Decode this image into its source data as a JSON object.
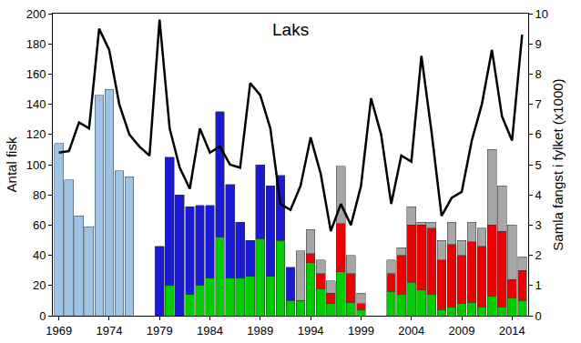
{
  "chart_data": {
    "type": "bar",
    "title": "Laks",
    "y_label": "Antal fisk",
    "y2_label": "Samla fangst i fylket (x1000)",
    "stacked": true,
    "grid": false,
    "x": [
      1969,
      1970,
      1971,
      1972,
      1973,
      1974,
      1975,
      1976,
      1977,
      1978,
      1979,
      1980,
      1981,
      1982,
      1983,
      1984,
      1985,
      1986,
      1987,
      1988,
      1989,
      1990,
      1991,
      1992,
      1993,
      1994,
      1995,
      1996,
      1997,
      1998,
      1999,
      2000,
      2001,
      2002,
      2003,
      2004,
      2005,
      2006,
      2007,
      2008,
      2009,
      2010,
      2011,
      2012,
      2013,
      2014,
      2015
    ],
    "xlim": [
      1968.4,
      2015.6
    ],
    "xticks": [
      1969,
      1974,
      1979,
      1984,
      1989,
      1994,
      1999,
      2004,
      2009,
      2014
    ],
    "ylim": [
      0,
      200
    ],
    "yticks": [
      0,
      20,
      40,
      60,
      80,
      100,
      120,
      140,
      160,
      180,
      200
    ],
    "y2lim": [
      0,
      10
    ],
    "y2ticks": [
      0,
      1,
      2,
      3,
      4,
      5,
      6,
      7,
      8,
      9,
      10
    ],
    "series": [
      {
        "type": "bar",
        "color": "#9dc3e6",
        "values": [
          114,
          90,
          66,
          59,
          146,
          150,
          96,
          92,
          null,
          null,
          null,
          null,
          null,
          null,
          null,
          null,
          null,
          null,
          null,
          null,
          null,
          null,
          null,
          null,
          null,
          null,
          null,
          null,
          null,
          null,
          null,
          null,
          null,
          null,
          null,
          null,
          null,
          null,
          null,
          null,
          null,
          null,
          null,
          null,
          null,
          null,
          null
        ]
      },
      {
        "type": "bar",
        "color": "#00cc00",
        "values": [
          null,
          null,
          null,
          null,
          null,
          null,
          null,
          null,
          null,
          null,
          null,
          20,
          null,
          14,
          20,
          25,
          52,
          25,
          25,
          26,
          51,
          26,
          50,
          10,
          10,
          35,
          18,
          8,
          29,
          9,
          4,
          null,
          null,
          16,
          14,
          22,
          17,
          14,
          4,
          6,
          8,
          9,
          6,
          13,
          6,
          12,
          10
        ]
      },
      {
        "type": "bar",
        "color": "#1a1ad6",
        "values": [
          null,
          null,
          null,
          null,
          null,
          null,
          null,
          null,
          null,
          null,
          46,
          85,
          80,
          58,
          53,
          48,
          83,
          62,
          37,
          24,
          49,
          60,
          43,
          22,
          null,
          null,
          null,
          null,
          null,
          null,
          null,
          null,
          null,
          null,
          null,
          null,
          null,
          null,
          null,
          null,
          null,
          null,
          null,
          null,
          null,
          null,
          null
        ]
      },
      {
        "type": "bar",
        "color": "#ee0000",
        "values": [
          null,
          null,
          null,
          null,
          null,
          null,
          null,
          null,
          null,
          null,
          null,
          null,
          null,
          null,
          null,
          null,
          null,
          null,
          null,
          null,
          null,
          null,
          null,
          null,
          null,
          6,
          10,
          7,
          32,
          19,
          4,
          null,
          null,
          12,
          26,
          38,
          43,
          44,
          33,
          41,
          32,
          40,
          40,
          47,
          50,
          12,
          20
        ]
      },
      {
        "type": "bar",
        "color": "#a6a6a6",
        "values": [
          null,
          null,
          null,
          null,
          null,
          null,
          null,
          null,
          null,
          null,
          null,
          null,
          null,
          null,
          null,
          null,
          null,
          null,
          null,
          null,
          null,
          null,
          null,
          null,
          33,
          16,
          9,
          8,
          38,
          12,
          7,
          null,
          null,
          9,
          5,
          12,
          2,
          4,
          13,
          15,
          10,
          13,
          12,
          50,
          30,
          36,
          9
        ]
      },
      {
        "type": "line",
        "axis": "y2",
        "color": "#000000",
        "values": [
          5.4,
          5.45,
          6.4,
          6.2,
          9.5,
          8.8,
          7.0,
          6.0,
          5.6,
          5.3,
          9.8,
          6.2,
          4.9,
          4.2,
          6.2,
          5.4,
          5.6,
          5.0,
          4.9,
          7.7,
          7.3,
          6.2,
          3.7,
          3.5,
          4.3,
          5.9,
          4.7,
          2.8,
          3.7,
          3.0,
          4.3,
          7.2,
          6.0,
          3.7,
          5.3,
          5.1,
          8.6,
          6.1,
          3.3,
          3.9,
          4.1,
          5.8,
          7.0,
          8.8,
          6.6,
          5.8,
          9.3
        ]
      }
    ]
  }
}
